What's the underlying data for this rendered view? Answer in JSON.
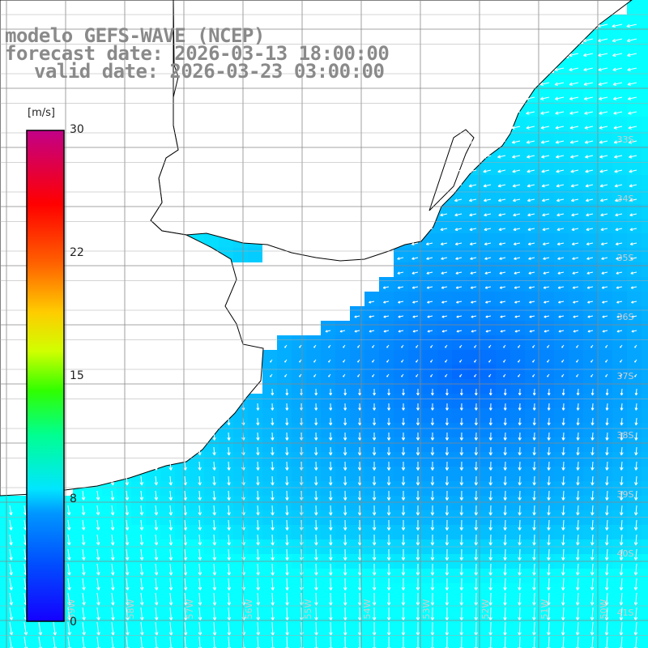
{
  "title": {
    "line1": "modelo GEFS-WAVE (NCEP)",
    "line2": "forecast date: 2026-03-13 18:00:00",
    "line3": "valid date: 2026-03-23 03:00:00"
  },
  "colorbar": {
    "unit": "[m/s]",
    "ticks": [
      "30",
      "22",
      "15",
      "8",
      "0"
    ],
    "tick_values": [
      30,
      22,
      15,
      8,
      0
    ],
    "range": [
      0,
      30
    ],
    "colors": [
      "#1a00ff",
      "#0066ff",
      "#00bfff",
      "#00ffff",
      "#00ff55",
      "#77ff00",
      "#ffff00",
      "#ffaa00",
      "#ff5500",
      "#ff0000",
      "#c0007a"
    ]
  },
  "lat_labels": [
    "33S",
    "34S",
    "35S",
    "36S",
    "37S",
    "38S",
    "39S",
    "40S",
    "41S"
  ],
  "lon_labels": [
    "59W",
    "58W",
    "57W",
    "56W",
    "55W",
    "54W",
    "53W",
    "52W",
    "51W",
    "50W"
  ]
}
